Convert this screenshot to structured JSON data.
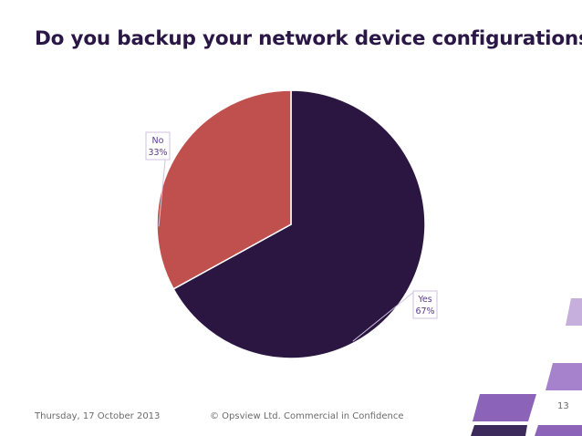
{
  "slide": {
    "title": "Do you backup your network device configurations?",
    "footer_date": "Thursday, 17 October 2013",
    "footer_copyright": "© Opsview Ltd. Commercial in Confidence",
    "page_number": "13"
  },
  "colors": {
    "title": "#2b1745",
    "yes": "#2a1641",
    "no": "#c0504d",
    "label_text": "#5b3c8c",
    "deco_purple": "#8b63b8",
    "deco_light": "#c6aedd"
  },
  "chart_data": {
    "type": "pie",
    "title": "",
    "slices": [
      {
        "label": "Yes",
        "value": 67,
        "display": "67%",
        "color": "#2a1641"
      },
      {
        "label": "No",
        "value": 33,
        "display": "33%",
        "color": "#c0504d"
      }
    ]
  }
}
